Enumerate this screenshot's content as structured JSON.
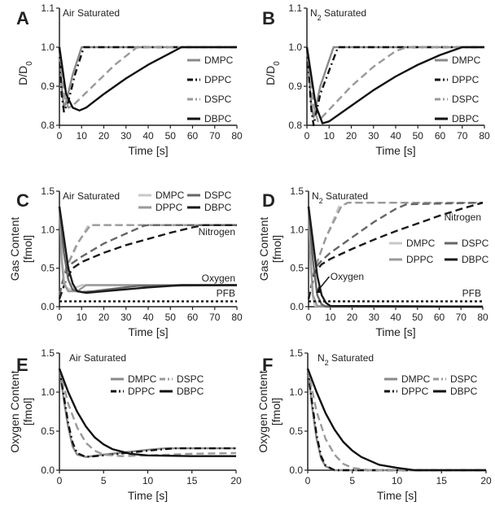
{
  "chart_data": [
    {
      "panel": "A",
      "type": "line",
      "title": "Air Saturated",
      "xlabel": "Time [s]",
      "ylabel": "D/D0",
      "ylabel_sub": "0",
      "xlim": [
        0,
        80
      ],
      "ylim": [
        0.8,
        1.1
      ],
      "xticks": [
        0,
        10,
        20,
        30,
        40,
        50,
        60,
        70,
        80
      ],
      "yticks": [
        0.8,
        0.9,
        1.0,
        1.1
      ],
      "ytick_labels": [
        "0.8",
        "0.9",
        "1.0",
        "1.1"
      ],
      "grid": false,
      "legend": "right",
      "series": [
        {
          "name": "DMPC",
          "color": "#8a8a8a",
          "style": "solid",
          "x": [
            0,
            1,
            2,
            3,
            6,
            10,
            80
          ],
          "y": [
            1.0,
            0.9,
            0.845,
            0.86,
            0.93,
            1.0,
            1.0
          ]
        },
        {
          "name": "DPPC",
          "color": "#111111",
          "style": "dashdot",
          "x": [
            0,
            1,
            2,
            4,
            7,
            11,
            80
          ],
          "y": [
            1.0,
            0.88,
            0.835,
            0.86,
            0.93,
            1.0,
            1.0
          ]
        },
        {
          "name": "DSPC",
          "color": "#9a9a9a",
          "style": "dash",
          "x": [
            0,
            2,
            4,
            6,
            15,
            25,
            35,
            80
          ],
          "y": [
            1.0,
            0.88,
            0.845,
            0.85,
            0.9,
            0.955,
            1.0,
            1.0
          ]
        },
        {
          "name": "DBPC",
          "color": "#111111",
          "style": "solid",
          "x": [
            0,
            3,
            6,
            9,
            12,
            20,
            30,
            40,
            50,
            55,
            80
          ],
          "y": [
            1.0,
            0.88,
            0.845,
            0.838,
            0.845,
            0.88,
            0.92,
            0.955,
            0.985,
            1.0,
            1.0
          ]
        }
      ]
    },
    {
      "panel": "B",
      "type": "line",
      "title": "N2 Saturated",
      "title_main": "N",
      "title_sub": "2",
      "title_rest": " Saturated",
      "xlabel": "Time [s]",
      "ylabel": "D/D0",
      "ylabel_sub": "0",
      "xlim": [
        0,
        80
      ],
      "ylim": [
        0.8,
        1.1
      ],
      "xticks": [
        0,
        10,
        20,
        30,
        40,
        50,
        60,
        70,
        80
      ],
      "yticks": [
        0.8,
        0.9,
        1.0,
        1.1
      ],
      "ytick_labels": [
        "0.8",
        "0.9",
        "1.0",
        "1.1"
      ],
      "grid": false,
      "legend": "right",
      "series": [
        {
          "name": "DMPC",
          "color": "#8a8a8a",
          "style": "solid",
          "x": [
            0,
            2,
            3,
            6,
            12,
            80
          ],
          "y": [
            1.0,
            0.85,
            0.82,
            0.9,
            1.0,
            1.0
          ]
        },
        {
          "name": "DPPC",
          "color": "#111111",
          "style": "dashdot",
          "x": [
            0,
            2,
            3,
            6,
            14,
            80
          ],
          "y": [
            1.0,
            0.84,
            0.8,
            0.88,
            1.0,
            1.0
          ]
        },
        {
          "name": "DSPC",
          "color": "#9a9a9a",
          "style": "dash",
          "x": [
            0,
            3,
            5,
            10,
            20,
            30,
            40,
            45,
            80
          ],
          "y": [
            1.0,
            0.85,
            0.81,
            0.84,
            0.9,
            0.95,
            0.99,
            1.0,
            1.0
          ]
        },
        {
          "name": "DBPC",
          "color": "#111111",
          "style": "solid",
          "x": [
            0,
            4,
            7,
            10,
            20,
            30,
            40,
            50,
            60,
            70,
            80
          ],
          "y": [
            1.0,
            0.85,
            0.805,
            0.81,
            0.85,
            0.89,
            0.925,
            0.955,
            0.98,
            1.0,
            1.0
          ]
        }
      ]
    },
    {
      "panel": "C",
      "type": "line",
      "title": "Air Saturated",
      "xlabel": "Time [s]",
      "ylabel": "Gas Content",
      "ylabel2": "[fmol]",
      "xlim": [
        0,
        80
      ],
      "ylim": [
        0,
        1.5
      ],
      "xticks": [
        0,
        10,
        20,
        30,
        40,
        50,
        60,
        70,
        80
      ],
      "yticks": [
        0,
        0.5,
        1.0,
        1.5
      ],
      "ytick_labels": [
        "0.0",
        "0.5",
        "1.0",
        "1.5"
      ],
      "grid": false,
      "legend": "top-right",
      "annotations": [
        "Nitrogen",
        "Oxygen",
        "PFB"
      ],
      "legend_entries": [
        {
          "name": "DMPC",
          "color": "#c8c8c8"
        },
        {
          "name": "DPPC",
          "color": "#9a9a9a"
        },
        {
          "name": "DSPC",
          "color": "#666666"
        },
        {
          "name": "DBPC",
          "color": "#1a1a1a"
        }
      ],
      "series": [
        {
          "name": "DMPC",
          "gas": "Nitrogen",
          "color": "#c8c8c8",
          "style": "dash",
          "x": [
            0,
            3,
            8,
            13,
            80
          ],
          "y": [
            0.15,
            0.5,
            0.8,
            1.06,
            1.06
          ]
        },
        {
          "name": "DPPC",
          "gas": "Nitrogen",
          "color": "#9a9a9a",
          "style": "dash",
          "x": [
            0,
            3,
            8,
            14,
            80
          ],
          "y": [
            0.15,
            0.5,
            0.82,
            1.06,
            1.06
          ]
        },
        {
          "name": "DSPC",
          "gas": "Nitrogen",
          "color": "#666666",
          "style": "dash",
          "x": [
            0,
            2,
            5,
            10,
            20,
            30,
            38,
            40,
            80
          ],
          "y": [
            0.15,
            0.4,
            0.55,
            0.65,
            0.82,
            0.95,
            1.05,
            1.06,
            1.06
          ]
        },
        {
          "name": "DBPC",
          "gas": "Nitrogen",
          "color": "#1a1a1a",
          "style": "dash",
          "x": [
            0,
            3,
            6,
            10,
            20,
            30,
            40,
            50,
            60,
            65,
            80
          ],
          "y": [
            0.1,
            0.35,
            0.5,
            0.58,
            0.7,
            0.8,
            0.88,
            0.96,
            1.03,
            1.06,
            1.06
          ]
        },
        {
          "name": "DMPC",
          "gas": "Oxygen",
          "color": "#c8c8c8",
          "style": "solid",
          "x": [
            0,
            1,
            2,
            3,
            5,
            10,
            80
          ],
          "y": [
            1.3,
            0.7,
            0.35,
            0.25,
            0.22,
            0.28,
            0.28
          ]
        },
        {
          "name": "DPPC",
          "gas": "Oxygen",
          "color": "#9a9a9a",
          "style": "solid",
          "x": [
            0,
            1,
            2,
            4,
            8,
            12,
            80
          ],
          "y": [
            1.3,
            0.6,
            0.3,
            0.2,
            0.2,
            0.28,
            0.28
          ]
        },
        {
          "name": "DSPC",
          "gas": "Oxygen",
          "color": "#666666",
          "style": "solid",
          "x": [
            0,
            2,
            4,
            6,
            10,
            15,
            35,
            80
          ],
          "y": [
            1.3,
            0.7,
            0.35,
            0.22,
            0.19,
            0.2,
            0.27,
            0.28
          ]
        },
        {
          "name": "DBPC",
          "gas": "Oxygen",
          "color": "#1a1a1a",
          "style": "solid",
          "x": [
            0,
            2,
            4,
            6,
            8,
            12,
            20,
            40,
            55,
            80
          ],
          "y": [
            1.3,
            0.9,
            0.5,
            0.3,
            0.2,
            0.18,
            0.2,
            0.25,
            0.28,
            0.28
          ]
        },
        {
          "name": "PFB",
          "gas": "PFB",
          "color": "#111111",
          "style": "dot",
          "x": [
            0,
            80
          ],
          "y": [
            0.07,
            0.07
          ]
        }
      ]
    },
    {
      "panel": "D",
      "type": "line",
      "title": "N2 Saturated",
      "title_main": "N",
      "title_sub": "2",
      "title_rest": " Saturated",
      "xlabel": "Time [s]",
      "ylabel": "Gas Content",
      "ylabel2": "[fmol]",
      "xlim": [
        0,
        80
      ],
      "ylim": [
        0,
        1.5
      ],
      "xticks": [
        0,
        10,
        20,
        30,
        40,
        50,
        60,
        70,
        80
      ],
      "yticks": [
        0,
        0.5,
        1.0,
        1.5
      ],
      "ytick_labels": [
        "0.0",
        "0.5",
        "1.0",
        "1.5"
      ],
      "grid": false,
      "legend": "right",
      "annotations": [
        "Nitrogen",
        "Oxygen",
        "PFB"
      ],
      "legend_entries": [
        {
          "name": "DMPC",
          "color": "#c8c8c8"
        },
        {
          "name": "DPPC",
          "color": "#9a9a9a"
        },
        {
          "name": "DSPC",
          "color": "#666666"
        },
        {
          "name": "DBPC",
          "color": "#1a1a1a"
        }
      ],
      "series": [
        {
          "name": "DMPC",
          "gas": "Nitrogen",
          "color": "#c8c8c8",
          "style": "dash",
          "x": [
            0,
            3,
            8,
            14,
            18,
            80
          ],
          "y": [
            0.1,
            0.5,
            0.9,
            1.3,
            1.35,
            1.35
          ]
        },
        {
          "name": "DPPC",
          "gas": "Nitrogen",
          "color": "#9a9a9a",
          "style": "dash",
          "x": [
            0,
            3,
            8,
            15,
            18,
            80
          ],
          "y": [
            0.1,
            0.5,
            0.9,
            1.3,
            1.35,
            1.35
          ]
        },
        {
          "name": "DSPC",
          "gas": "Nitrogen",
          "color": "#666666",
          "style": "dash",
          "x": [
            0,
            3,
            6,
            10,
            20,
            30,
            40,
            45,
            80
          ],
          "y": [
            0.1,
            0.5,
            0.6,
            0.7,
            0.9,
            1.1,
            1.27,
            1.33,
            1.35
          ]
        },
        {
          "name": "DBPC",
          "gas": "Nitrogen",
          "color": "#1a1a1a",
          "style": "dash",
          "x": [
            0,
            3,
            6,
            10,
            20,
            30,
            40,
            50,
            60,
            70,
            80
          ],
          "y": [
            0.1,
            0.45,
            0.55,
            0.62,
            0.75,
            0.87,
            0.98,
            1.08,
            1.18,
            1.27,
            1.35
          ]
        },
        {
          "name": "DMPC",
          "gas": "Oxygen",
          "color": "#c8c8c8",
          "style": "solid",
          "x": [
            0,
            1,
            2,
            3,
            80
          ],
          "y": [
            1.3,
            0.5,
            0.1,
            0.01,
            0
          ]
        },
        {
          "name": "DPPC",
          "gas": "Oxygen",
          "color": "#9a9a9a",
          "style": "solid",
          "x": [
            0,
            1,
            2,
            4,
            80
          ],
          "y": [
            1.3,
            0.6,
            0.15,
            0.01,
            0
          ]
        },
        {
          "name": "DSPC",
          "gas": "Oxygen",
          "color": "#666666",
          "style": "solid",
          "x": [
            0,
            2,
            4,
            6,
            8,
            80
          ],
          "y": [
            1.3,
            0.6,
            0.15,
            0.03,
            0,
            0
          ]
        },
        {
          "name": "DBPC",
          "gas": "Oxygen",
          "color": "#1a1a1a",
          "style": "solid",
          "x": [
            0,
            2,
            4,
            6,
            8,
            10,
            80
          ],
          "y": [
            1.3,
            0.85,
            0.4,
            0.15,
            0.05,
            0.01,
            0
          ]
        },
        {
          "name": "PFB",
          "gas": "PFB",
          "color": "#111111",
          "style": "dot",
          "x": [
            0,
            80
          ],
          "y": [
            0.07,
            0.07
          ]
        }
      ]
    },
    {
      "panel": "E",
      "type": "line",
      "title": "Air Saturated",
      "xlabel": "Time [s]",
      "ylabel": "Oxygen Content",
      "ylabel2": "[fmol]",
      "xlim": [
        0,
        20
      ],
      "ylim": [
        0,
        1.5
      ],
      "xticks": [
        0,
        5,
        10,
        15,
        20
      ],
      "yticks": [
        0,
        0.5,
        1.0,
        1.5
      ],
      "ytick_labels": [
        "0.0",
        "0.5",
        "1.0",
        "1.5"
      ],
      "grid": false,
      "legend": "top-right",
      "series": [
        {
          "name": "DMPC",
          "color": "#8a8a8a",
          "style": "solid",
          "x": [
            0,
            0.5,
            1,
            1.5,
            2,
            3,
            5,
            10,
            12,
            20
          ],
          "y": [
            1.3,
            0.9,
            0.55,
            0.3,
            0.2,
            0.17,
            0.2,
            0.26,
            0.28,
            0.28
          ]
        },
        {
          "name": "DPPC",
          "color": "#111111",
          "style": "dashdot",
          "x": [
            0,
            0.5,
            1,
            1.5,
            2,
            3,
            5,
            10,
            13,
            20
          ],
          "y": [
            1.3,
            0.95,
            0.6,
            0.35,
            0.22,
            0.17,
            0.19,
            0.25,
            0.28,
            0.28
          ]
        },
        {
          "name": "DSPC",
          "color": "#9a9a9a",
          "style": "dash",
          "x": [
            0,
            1,
            2,
            3,
            4,
            5,
            7,
            10,
            15,
            20
          ],
          "y": [
            1.3,
            0.85,
            0.55,
            0.35,
            0.25,
            0.2,
            0.18,
            0.19,
            0.21,
            0.22
          ]
        },
        {
          "name": "DBPC",
          "color": "#111111",
          "style": "solid",
          "x": [
            0,
            1,
            2,
            3,
            4,
            5,
            6,
            8,
            10,
            15,
            20
          ],
          "y": [
            1.3,
            1.0,
            0.75,
            0.56,
            0.42,
            0.33,
            0.27,
            0.21,
            0.19,
            0.18,
            0.18
          ]
        }
      ]
    },
    {
      "panel": "F",
      "type": "line",
      "title": "N2 Saturated",
      "title_main": "N",
      "title_sub": "2",
      "title_rest": " Saturated",
      "xlabel": "Time [s]",
      "ylabel": "Oxygen Content",
      "ylabel2": "[fmol]",
      "xlim": [
        0,
        20
      ],
      "ylim": [
        0,
        1.5
      ],
      "xticks": [
        0,
        5,
        10,
        15,
        20
      ],
      "yticks": [
        0,
        0.5,
        1.0,
        1.5
      ],
      "ytick_labels": [
        "0.0",
        "0.5",
        "1.0",
        "1.5"
      ],
      "grid": false,
      "legend": "top-right",
      "series": [
        {
          "name": "DMPC",
          "color": "#8a8a8a",
          "style": "solid",
          "x": [
            0,
            0.5,
            1,
            1.5,
            2,
            3,
            20
          ],
          "y": [
            1.3,
            0.8,
            0.4,
            0.15,
            0.05,
            0,
            0
          ]
        },
        {
          "name": "DPPC",
          "color": "#111111",
          "style": "dashdot",
          "x": [
            0,
            0.5,
            1,
            1.5,
            2,
            3,
            20
          ],
          "y": [
            1.3,
            0.85,
            0.45,
            0.18,
            0.06,
            0,
            0
          ]
        },
        {
          "name": "DSPC",
          "color": "#9a9a9a",
          "style": "dash",
          "x": [
            0,
            1,
            2,
            3,
            4,
            5,
            7,
            20
          ],
          "y": [
            1.3,
            0.75,
            0.4,
            0.2,
            0.08,
            0.03,
            0,
            0
          ]
        },
        {
          "name": "DBPC",
          "color": "#111111",
          "style": "solid",
          "x": [
            0,
            1,
            2,
            3,
            4,
            5,
            6,
            8,
            10,
            12,
            20
          ],
          "y": [
            1.3,
            1.0,
            0.73,
            0.52,
            0.36,
            0.25,
            0.17,
            0.07,
            0.03,
            0,
            0
          ]
        }
      ]
    }
  ]
}
